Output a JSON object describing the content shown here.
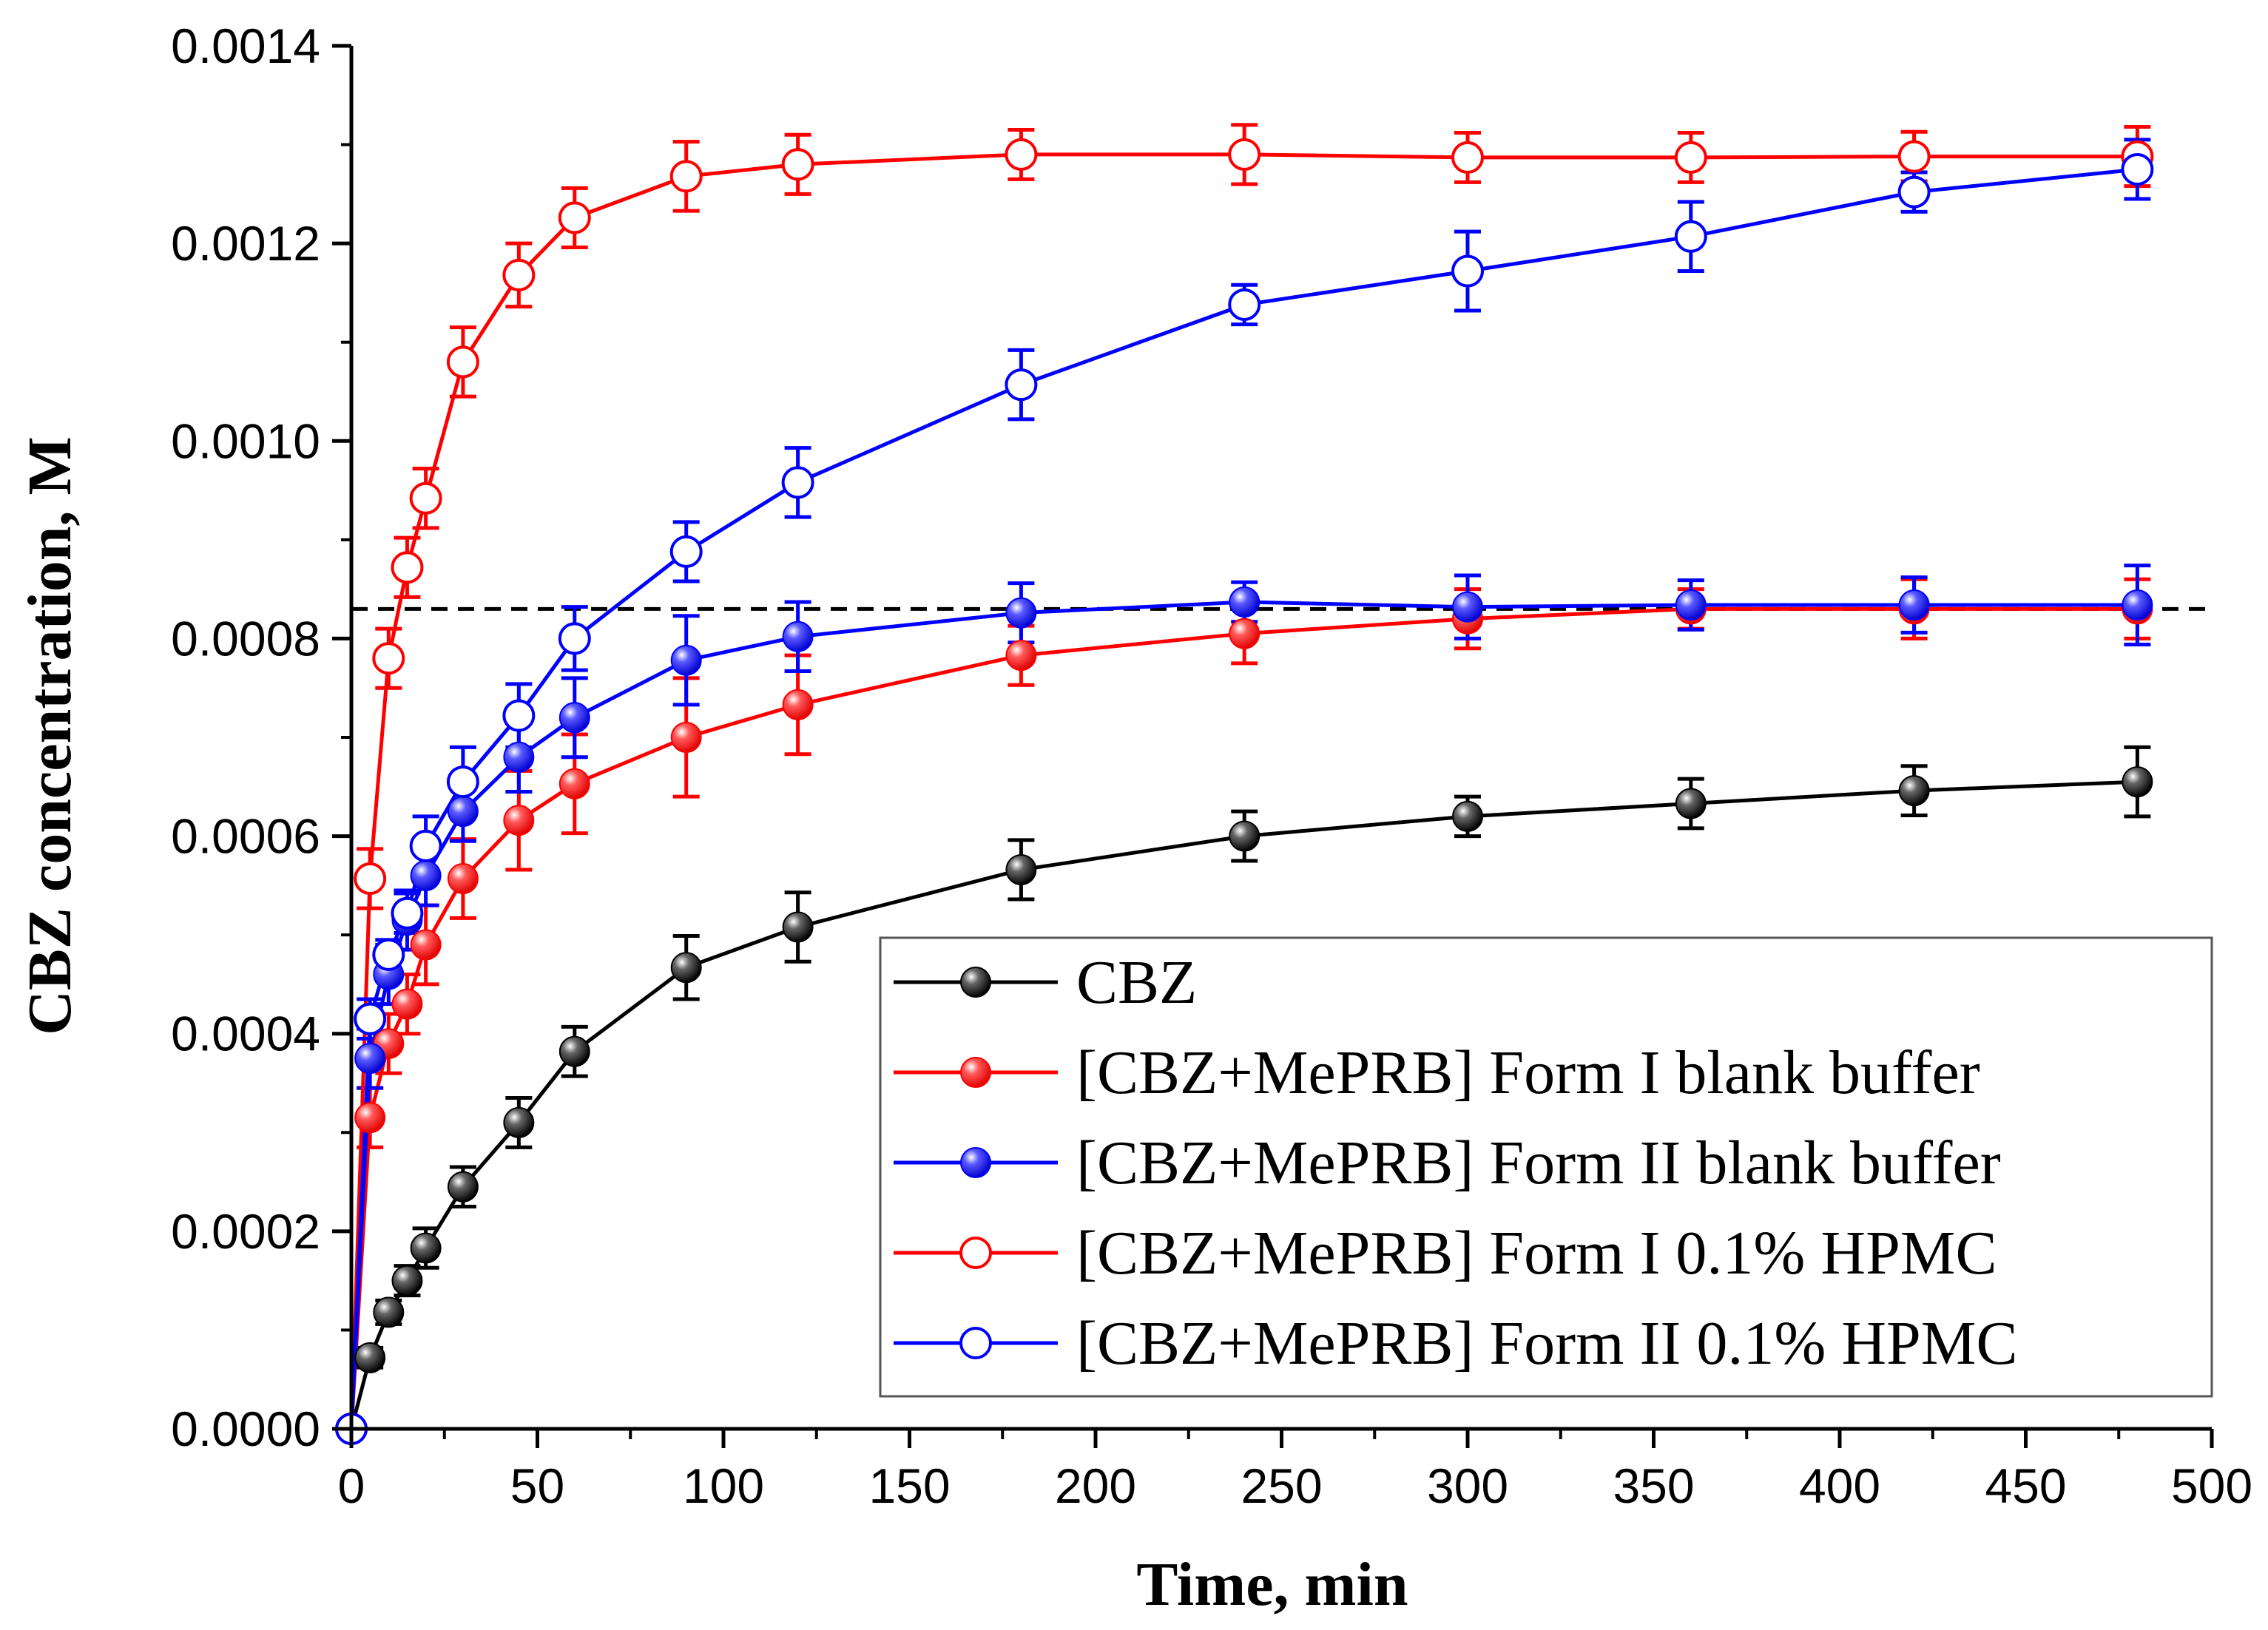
{
  "chart_data": {
    "type": "line",
    "title": "",
    "xlabel": "Time, min",
    "ylabel": "CBZ concentration, M",
    "xlim": [
      0,
      500
    ],
    "ylim": [
      0,
      0.0014
    ],
    "xticks": [
      0,
      50,
      100,
      150,
      200,
      250,
      300,
      350,
      400,
      450,
      500
    ],
    "xtick_labels": [
      "0",
      "50",
      "100",
      "150",
      "200",
      "250",
      "300",
      "350",
      "400",
      "450",
      "500"
    ],
    "yticks": [
      0,
      0.0002,
      0.0004,
      0.0006,
      0.0008,
      0.001,
      0.0012,
      0.0014
    ],
    "ytick_labels": [
      "0.0000",
      "0.0002",
      "0.0004",
      "0.0006",
      "0.0008",
      "0.0010",
      "0.0012",
      "0.0014"
    ],
    "grid": false,
    "legend_position": "bottom-right",
    "reference_line": {
      "y": 0.00083,
      "style": "dashed",
      "color": "#000000"
    },
    "x": [
      0,
      5,
      10,
      15,
      20,
      30,
      45,
      60,
      90,
      120,
      180,
      240,
      300,
      360,
      420,
      480
    ],
    "series": [
      {
        "name": "CBZ",
        "color": "#000000",
        "marker": "filled",
        "values": [
          0,
          7.2e-05,
          0.000118,
          0.00015,
          0.000183,
          0.000245,
          0.00031,
          0.000382,
          0.000467,
          0.000508,
          0.000566,
          0.0006,
          0.00062,
          0.000633,
          0.000646,
          0.000655
        ],
        "errors": [
          0,
          1e-05,
          1.2e-05,
          1.5e-05,
          2e-05,
          2e-05,
          2.5e-05,
          2.5e-05,
          3.2e-05,
          3.5e-05,
          3e-05,
          2.5e-05,
          2e-05,
          2.5e-05,
          2.5e-05,
          3.5e-05
        ]
      },
      {
        "name": "[CBZ+MePRB] Form I blank buffer",
        "color": "#ff0000",
        "marker": "filled",
        "values": [
          0,
          0.000315,
          0.00039,
          0.00043,
          0.00049,
          0.000557,
          0.000616,
          0.000653,
          0.0007,
          0.000733,
          0.000783,
          0.000805,
          0.00082,
          0.00083,
          0.00083,
          0.00083
        ],
        "errors": [
          0,
          3e-05,
          3e-05,
          3e-05,
          4e-05,
          4e-05,
          5e-05,
          5e-05,
          6e-05,
          5e-05,
          3e-05,
          3e-05,
          3e-05,
          2e-05,
          3e-05,
          3e-05
        ]
      },
      {
        "name": "[CBZ+MePRB] Form II blank buffer",
        "color": "#0000ff",
        "marker": "filled",
        "values": [
          0,
          0.000375,
          0.00046,
          0.000515,
          0.00056,
          0.000625,
          0.00068,
          0.00072,
          0.000778,
          0.000802,
          0.000826,
          0.000837,
          0.000832,
          0.000834,
          0.000834,
          0.000834
        ],
        "errors": [
          0,
          3e-05,
          3e-05,
          3e-05,
          3e-05,
          3e-05,
          3.5e-05,
          4e-05,
          4.5e-05,
          3.5e-05,
          3e-05,
          2e-05,
          3.2e-05,
          2.5e-05,
          2.8e-05,
          4e-05
        ]
      },
      {
        "name": "[CBZ+MePRB] Form I 0.1% HPMC",
        "color": "#ff0000",
        "marker": "open",
        "values": [
          0,
          0.000557,
          0.00078,
          0.000872,
          0.000942,
          0.00108,
          0.001168,
          0.001226,
          0.001268,
          0.00128,
          0.00129,
          0.00129,
          0.001287,
          0.001287,
          0.001288,
          0.001288
        ],
        "errors": [
          0,
          3e-05,
          3e-05,
          3e-05,
          3e-05,
          3.5e-05,
          3.2e-05,
          3e-05,
          3.5e-05,
          3e-05,
          2.5e-05,
          3e-05,
          2.5e-05,
          2.5e-05,
          2.5e-05,
          3e-05
        ]
      },
      {
        "name": "[CBZ+MePRB] Form II 0.1% HPMC",
        "color": "#0000ff",
        "marker": "open",
        "values": [
          0,
          0.000415,
          0.00048,
          0.000522,
          0.00059,
          0.000655,
          0.000722,
          0.0008,
          0.000888,
          0.000958,
          0.001057,
          0.001138,
          0.001172,
          0.001207,
          0.001252,
          0.001275
        ],
        "errors": [
          0,
          2e-05,
          1.5e-05,
          2e-05,
          3e-05,
          3.5e-05,
          3.2e-05,
          3.2e-05,
          3e-05,
          3.5e-05,
          3.5e-05,
          2e-05,
          4e-05,
          3.5e-05,
          2e-05,
          3e-05
        ]
      }
    ]
  }
}
